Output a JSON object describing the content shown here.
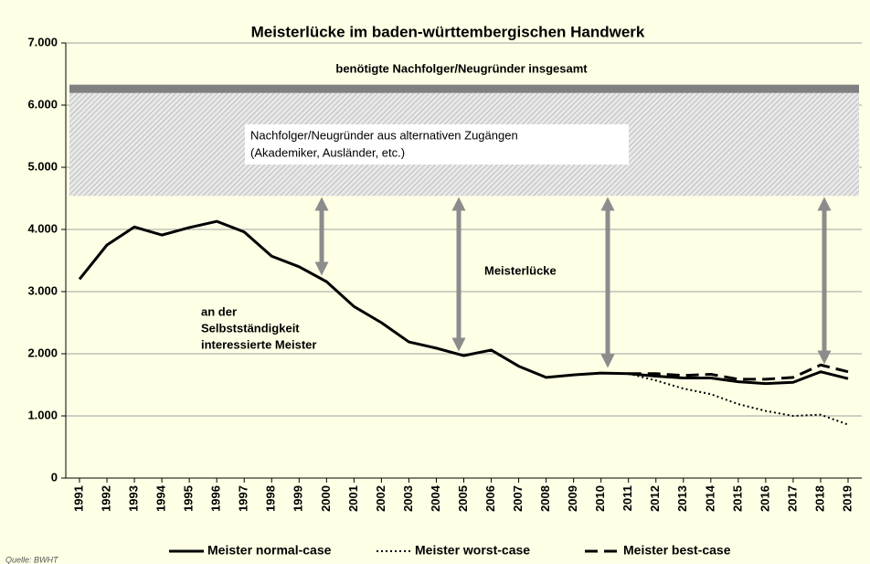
{
  "chart_data": {
    "type": "line",
    "title": "Meisterlücke im baden-württembergischen Handwerk",
    "categories": [
      "1991",
      "1992",
      "1993",
      "1994",
      "1995",
      "1996",
      "1997",
      "1998",
      "1999",
      "2000",
      "2001",
      "2002",
      "2003",
      "2004",
      "2005",
      "2006",
      "2007",
      "2008",
      "2009",
      "2010",
      "2011",
      "2012",
      "2013",
      "2014",
      "2015",
      "2016",
      "2017",
      "2018",
      "2019"
    ],
    "series": [
      {
        "name": "Meister normal-case",
        "color": "#000000",
        "style": "solid",
        "values": [
          3200,
          3750,
          4040,
          3910,
          4030,
          4130,
          3960,
          3570,
          3400,
          3160,
          2760,
          2500,
          2190,
          2090,
          1970,
          2060,
          1800,
          1620,
          1660,
          1690,
          1680,
          1640,
          1610,
          1610,
          1550,
          1520,
          1540,
          1710,
          1600
        ]
      },
      {
        "name": "Meister worst-case",
        "color": "#000000",
        "style": "dotted",
        "values": [
          null,
          null,
          null,
          null,
          null,
          null,
          null,
          null,
          null,
          null,
          null,
          null,
          null,
          null,
          null,
          null,
          null,
          null,
          null,
          null,
          1680,
          1570,
          1440,
          1350,
          1190,
          1080,
          1000,
          1020,
          860
        ]
      },
      {
        "name": "Meister best-case",
        "color": "#000000",
        "style": "dashed",
        "values": [
          null,
          null,
          null,
          null,
          null,
          null,
          null,
          null,
          null,
          null,
          null,
          null,
          null,
          null,
          null,
          null,
          null,
          null,
          null,
          null,
          1680,
          1680,
          1650,
          1670,
          1590,
          1590,
          1620,
          1820,
          1710
        ]
      }
    ],
    "ylim": [
      0,
      7000
    ],
    "yticks": [
      0,
      {
        "value": 1000,
        "label": "1.000"
      },
      {
        "value": 2000,
        "label": "2.000"
      },
      {
        "value": 3000,
        "label": "3.000"
      },
      {
        "value": 4000,
        "label": "4.000"
      },
      {
        "value": 5000,
        "label": "5.000"
      },
      {
        "value": 6000,
        "label": "6.000"
      },
      {
        "value": 7000,
        "label": "7.000"
      }
    ],
    "grid": true,
    "band": [
      4540,
      6270
    ],
    "annotations": {
      "total": "benötigte Nachfolger/Neugründer insgesamt",
      "alternative": [
        "Nachfolger/Neugründer aus alternativen Zugängen",
        "(Akademiker, Ausländer, etc.)"
      ],
      "gap": "Meisterlücke",
      "interested": [
        "an der",
        "Selbstständigkeit",
        "interessierte Meister"
      ]
    },
    "source": "Quelle: BWHT"
  }
}
